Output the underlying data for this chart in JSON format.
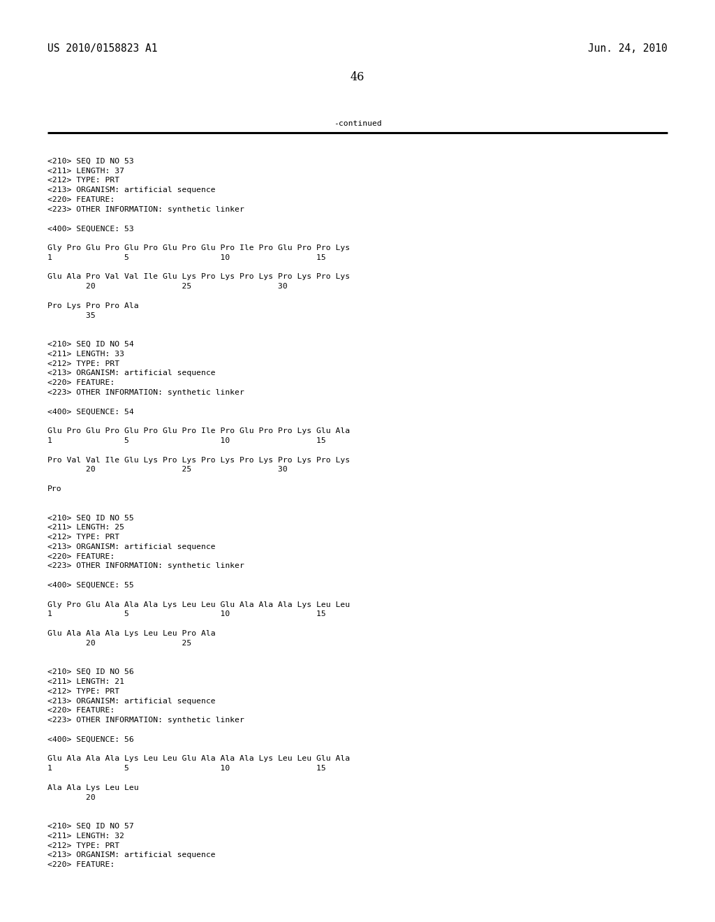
{
  "header_left": "US 2010/0158823 A1",
  "header_right": "Jun. 24, 2010",
  "page_number": "46",
  "continued_label": "-continued",
  "background_color": "#ffffff",
  "text_color": "#000000",
  "font_size_header": 10.5,
  "font_size_body": 8.2,
  "font_size_page": 11.5,
  "content_lines": [
    "",
    "<210> SEQ ID NO 53",
    "<211> LENGTH: 37",
    "<212> TYPE: PRT",
    "<213> ORGANISM: artificial sequence",
    "<220> FEATURE:",
    "<223> OTHER INFORMATION: synthetic linker",
    "",
    "<400> SEQUENCE: 53",
    "",
    "Gly Pro Glu Pro Glu Pro Glu Pro Glu Pro Ile Pro Glu Pro Pro Lys",
    "1               5                   10                  15",
    "",
    "Glu Ala Pro Val Val Ile Glu Lys Pro Lys Pro Lys Pro Lys Pro Lys",
    "        20                  25                  30",
    "",
    "Pro Lys Pro Pro Ala",
    "        35",
    "",
    "",
    "<210> SEQ ID NO 54",
    "<211> LENGTH: 33",
    "<212> TYPE: PRT",
    "<213> ORGANISM: artificial sequence",
    "<220> FEATURE:",
    "<223> OTHER INFORMATION: synthetic linker",
    "",
    "<400> SEQUENCE: 54",
    "",
    "Glu Pro Glu Pro Glu Pro Glu Pro Ile Pro Glu Pro Pro Lys Glu Ala",
    "1               5                   10                  15",
    "",
    "Pro Val Val Ile Glu Lys Pro Lys Pro Lys Pro Lys Pro Lys Pro Lys",
    "        20                  25                  30",
    "",
    "Pro",
    "",
    "",
    "<210> SEQ ID NO 55",
    "<211> LENGTH: 25",
    "<212> TYPE: PRT",
    "<213> ORGANISM: artificial sequence",
    "<220> FEATURE:",
    "<223> OTHER INFORMATION: synthetic linker",
    "",
    "<400> SEQUENCE: 55",
    "",
    "Gly Pro Glu Ala Ala Ala Lys Leu Leu Glu Ala Ala Ala Lys Leu Leu",
    "1               5                   10                  15",
    "",
    "Glu Ala Ala Ala Lys Leu Leu Pro Ala",
    "        20                  25",
    "",
    "",
    "<210> SEQ ID NO 56",
    "<211> LENGTH: 21",
    "<212> TYPE: PRT",
    "<213> ORGANISM: artificial sequence",
    "<220> FEATURE:",
    "<223> OTHER INFORMATION: synthetic linker",
    "",
    "<400> SEQUENCE: 56",
    "",
    "Glu Ala Ala Ala Lys Leu Leu Glu Ala Ala Ala Lys Leu Leu Glu Ala",
    "1               5                   10                  15",
    "",
    "Ala Ala Lys Leu Leu",
    "        20",
    "",
    "",
    "<210> SEQ ID NO 57",
    "<211> LENGTH: 32",
    "<212> TYPE: PRT",
    "<213> ORGANISM: artificial sequence",
    "<220> FEATURE:"
  ]
}
